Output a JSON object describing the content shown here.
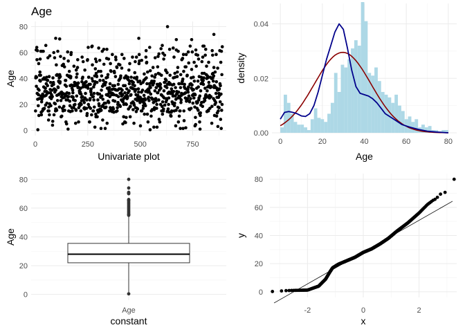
{
  "title": "Age",
  "chart_data": [
    {
      "type": "scatter",
      "panel": "top-left",
      "title": "Age",
      "xlabel": "Univariate plot",
      "ylabel": "Age",
      "xlim": [
        -20,
        910
      ],
      "ylim": [
        -4,
        84
      ],
      "xticks": [
        0,
        250,
        500,
        750
      ],
      "yticks": [
        0,
        20,
        40,
        60,
        80
      ],
      "n_points": 891,
      "distribution_note": "Age values for each of 891 row indices; dense band between 20 and 40.",
      "highlighted_points": [
        {
          "x": 630,
          "y": 80
        },
        {
          "x": 851,
          "y": 74
        },
        {
          "x": 97,
          "y": 71
        },
        {
          "x": 116,
          "y": 70.5
        },
        {
          "x": 493,
          "y": 71
        },
        {
          "x": 672,
          "y": 70
        },
        {
          "x": 745,
          "y": 70
        }
      ],
      "point_color": "#000000",
      "grid": true
    },
    {
      "type": "histogram",
      "panel": "top-right",
      "xlabel": "Age",
      "ylabel": "density",
      "xlim": [
        -4,
        84
      ],
      "ylim": [
        0,
        0.0475
      ],
      "xticks": [
        0,
        20,
        40,
        60,
        80
      ],
      "yticks": [
        0.0,
        0.02,
        0.04
      ],
      "ytick_labels": [
        "0.00",
        "0.02",
        "0.04"
      ],
      "bin_width": 1.6,
      "bin_start": 0,
      "densities": [
        0.002,
        0.014,
        0.011,
        0.007,
        0.004,
        0.003,
        0.003,
        0.002,
        0.001,
        0.005,
        0.009,
        0.0055,
        0.005,
        0.004,
        0.007,
        0.011,
        0.022,
        0.015,
        0.025,
        0.024,
        0.027,
        0.031,
        0.034,
        0.032,
        0.048,
        0.041,
        0.022,
        0.021,
        0.024,
        0.019,
        0.015,
        0.014,
        0.013,
        0.011,
        0.014,
        0.01,
        0.008,
        0.005,
        0.006,
        0.004,
        0.005,
        0.002,
        0.003,
        0.002,
        0.0025,
        0.001,
        0.001,
        0.0005,
        0.001,
        0.001
      ],
      "bar_color": "#add8e6",
      "curves": [
        {
          "name": "kernel density",
          "color": "#00008b",
          "x": [
            0,
            2,
            4,
            6,
            8,
            10,
            12,
            14,
            16,
            18,
            20,
            22,
            24,
            26,
            28,
            30,
            32,
            34,
            36,
            38,
            40,
            42,
            44,
            46,
            48,
            50,
            54,
            58,
            62,
            66,
            70,
            74,
            78,
            80
          ],
          "y": [
            0.005,
            0.0075,
            0.0078,
            0.0075,
            0.007,
            0.0062,
            0.006,
            0.007,
            0.01,
            0.015,
            0.021,
            0.027,
            0.032,
            0.037,
            0.04,
            0.038,
            0.031,
            0.023,
            0.017,
            0.0145,
            0.014,
            0.0135,
            0.0125,
            0.011,
            0.009,
            0.007,
            0.005,
            0.003,
            0.002,
            0.0012,
            0.0006,
            0.0003,
            0.0001,
            0.0
          ]
        },
        {
          "name": "normal density",
          "color": "#8b0000",
          "mean": 29.7,
          "sd": 13.5
        }
      ],
      "grid": true
    },
    {
      "type": "box",
      "panel": "bottom-left",
      "xlabel": "constant",
      "ylabel": "Age",
      "categories": [
        "Age"
      ],
      "ylim": [
        -4,
        84
      ],
      "yticks": [
        0,
        20,
        40,
        60,
        80
      ],
      "box": {
        "min": 0.4,
        "q1": 22,
        "median": 28,
        "q3": 35.5,
        "max": 54.5
      },
      "outliers": [
        55,
        55.5,
        56,
        57,
        58,
        59,
        60,
        61,
        62,
        63,
        64,
        65,
        65.5,
        66,
        70,
        70.5,
        71,
        74,
        80
      ],
      "grid": true
    },
    {
      "type": "scatter",
      "panel": "bottom-right",
      "xlabel": "x",
      "ylabel": "y",
      "xlim": [
        -3.35,
        3.35
      ],
      "ylim": [
        -4,
        84
      ],
      "xticks": [
        -2,
        0,
        2
      ],
      "yticks": [
        0,
        20,
        40,
        60,
        80
      ],
      "n_points": 891,
      "qq_reference_line": {
        "intercept": 28.2,
        "slope": 11.3
      },
      "point_color": "#000000",
      "grid": true
    }
  ]
}
